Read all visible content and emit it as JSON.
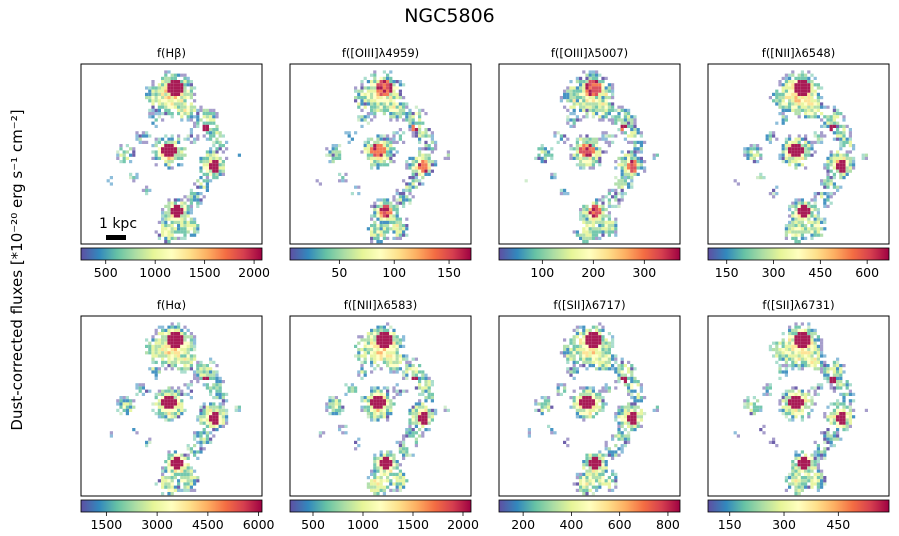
{
  "title": "NGC5806",
  "ylabel": "Dust-corrected fluxes [*10⁻²⁰ erg s⁻¹ cm⁻²]",
  "scalebar_label": "1 kpc",
  "colormap": [
    "#5e4fa2",
    "#3288bd",
    "#66c2a5",
    "#abdda4",
    "#e6f598",
    "#ffffbf",
    "#fee08b",
    "#fdae61",
    "#f46d43",
    "#d53e4f",
    "#9e0142"
  ],
  "chart_data": [
    {
      "type": "heatmap",
      "title": "f(Hβ)",
      "colorbar_ticks": [
        "500",
        "1000",
        "1500",
        "2000"
      ],
      "colorbar_range": [
        250,
        2080
      ],
      "tick_values": [
        500,
        1000,
        1500,
        2000
      ]
    },
    {
      "type": "heatmap",
      "title": "f([OIII]λ4959)",
      "colorbar_ticks": [
        "50",
        "100",
        "150"
      ],
      "colorbar_range": [
        5,
        170
      ],
      "tick_values": [
        50,
        100,
        150
      ]
    },
    {
      "type": "heatmap",
      "title": "f([OIII]λ5007)",
      "colorbar_ticks": [
        "100",
        "200",
        "300"
      ],
      "colorbar_range": [
        15,
        370
      ],
      "tick_values": [
        100,
        200,
        300
      ]
    },
    {
      "type": "heatmap",
      "title": "f([NII]λ6548)",
      "colorbar_ticks": [
        "150",
        "300",
        "450",
        "600"
      ],
      "colorbar_range": [
        90,
        670
      ],
      "tick_values": [
        150,
        300,
        450,
        600
      ]
    },
    {
      "type": "heatmap",
      "title": "f(Hα)",
      "colorbar_ticks": [
        "1500",
        "3000",
        "4500",
        "6000"
      ],
      "colorbar_range": [
        750,
        6100
      ],
      "tick_values": [
        1500,
        3000,
        4500,
        6000
      ]
    },
    {
      "type": "heatmap",
      "title": "f([NII]λ6583)",
      "colorbar_ticks": [
        "500",
        "1000",
        "1500",
        "2000"
      ],
      "colorbar_range": [
        270,
        2080
      ],
      "tick_values": [
        500,
        1000,
        1500,
        2000
      ]
    },
    {
      "type": "heatmap",
      "title": "f([SII]λ6717)",
      "colorbar_ticks": [
        "200",
        "400",
        "600",
        "800"
      ],
      "colorbar_range": [
        100,
        850
      ],
      "tick_values": [
        200,
        400,
        600,
        800
      ]
    },
    {
      "type": "heatmap",
      "title": "f([SII]λ6731)",
      "colorbar_ticks": [
        "150",
        "300",
        "450"
      ],
      "colorbar_range": [
        90,
        590
      ],
      "tick_values": [
        150,
        300,
        450
      ]
    }
  ]
}
